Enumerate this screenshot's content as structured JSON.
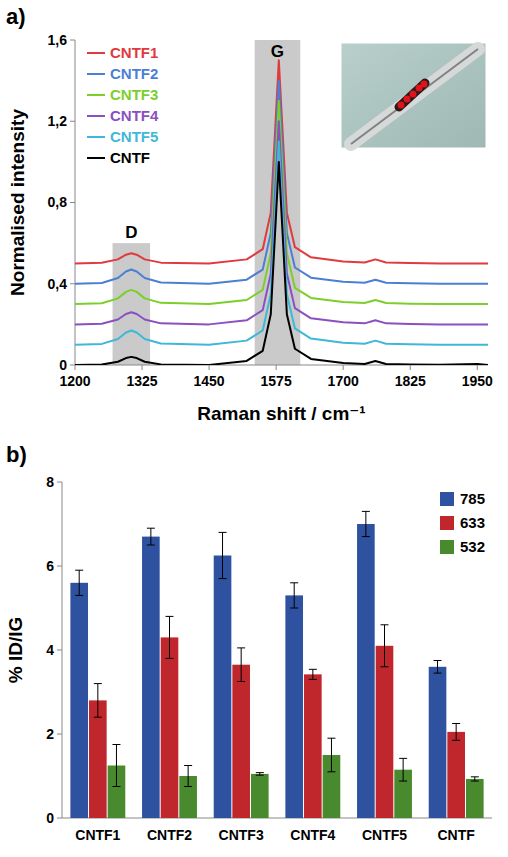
{
  "chart_data": [
    {
      "type": "line",
      "panel": "a)",
      "x_label": "Raman shift / cm⁻¹",
      "y_label": "Normalised intensity",
      "x": [
        1200,
        1250,
        1280,
        1295,
        1305,
        1315,
        1330,
        1360,
        1450,
        1520,
        1550,
        1565,
        1575,
        1580,
        1585,
        1595,
        1610,
        1640,
        1700,
        1740,
        1760,
        1780,
        1825,
        1880,
        1950,
        1970
      ],
      "series": [
        {
          "name": "CNTF1",
          "color": "#e0393e",
          "values": [
            0.5,
            0.503,
            0.52,
            0.543,
            0.55,
            0.543,
            0.52,
            0.504,
            0.5,
            0.52,
            0.57,
            0.75,
            1.25,
            1.5,
            1.25,
            0.75,
            0.58,
            0.53,
            0.51,
            0.505,
            0.52,
            0.505,
            0.502,
            0.5,
            0.5,
            0.5
          ]
        },
        {
          "name": "CNTF2",
          "color": "#4a7fd4",
          "values": [
            0.4,
            0.404,
            0.428,
            0.46,
            0.47,
            0.46,
            0.428,
            0.406,
            0.4,
            0.42,
            0.47,
            0.65,
            1.15,
            1.4,
            1.15,
            0.65,
            0.48,
            0.43,
            0.41,
            0.405,
            0.42,
            0.405,
            0.402,
            0.4,
            0.4,
            0.4
          ]
        },
        {
          "name": "CNTF3",
          "color": "#7ccf2a",
          "values": [
            0.3,
            0.304,
            0.328,
            0.36,
            0.37,
            0.36,
            0.328,
            0.306,
            0.3,
            0.32,
            0.37,
            0.55,
            1.05,
            1.3,
            1.05,
            0.55,
            0.38,
            0.33,
            0.31,
            0.305,
            0.32,
            0.305,
            0.302,
            0.3,
            0.3,
            0.3
          ]
        },
        {
          "name": "CNTF4",
          "color": "#8a4fc0",
          "values": [
            0.2,
            0.203,
            0.224,
            0.251,
            0.26,
            0.251,
            0.224,
            0.205,
            0.2,
            0.22,
            0.27,
            0.45,
            0.95,
            1.2,
            0.95,
            0.45,
            0.28,
            0.23,
            0.21,
            0.205,
            0.22,
            0.205,
            0.202,
            0.2,
            0.2,
            0.2
          ]
        },
        {
          "name": "CNTF5",
          "color": "#3fb8d8",
          "values": [
            0.1,
            0.104,
            0.128,
            0.16,
            0.17,
            0.16,
            0.128,
            0.106,
            0.1,
            0.12,
            0.17,
            0.35,
            0.85,
            1.1,
            0.85,
            0.35,
            0.18,
            0.13,
            0.11,
            0.105,
            0.12,
            0.105,
            0.102,
            0.1,
            0.1,
            0.1
          ]
        },
        {
          "name": "CNTF",
          "color": "#000000",
          "values": [
            0,
            0.002,
            0.016,
            0.034,
            0.04,
            0.034,
            0.016,
            0.003,
            0,
            0.02,
            0.07,
            0.25,
            0.75,
            1,
            0.75,
            0.25,
            0.08,
            0.03,
            0.01,
            0.005,
            0.02,
            0.005,
            0.003,
            0.001,
            0.005,
            0
          ]
        }
      ],
      "shaded_regions": [
        {
          "label": "D",
          "x": [
            1270,
            1340
          ],
          "y": [
            0,
            0.6
          ]
        },
        {
          "label": "G",
          "x": [
            1535,
            1620
          ],
          "y": [
            0,
            1.6
          ]
        }
      ],
      "xlim": [
        1200,
        1970
      ],
      "xticks": [
        1200,
        1325,
        1450,
        1575,
        1700,
        1825,
        1950
      ],
      "ylim": [
        0,
        1.6
      ],
      "yticks": [
        0,
        {
          "value": 0.4,
          "label": "0,4"
        },
        {
          "value": 0.8,
          "label": "0,8"
        },
        {
          "value": 1.2,
          "label": "1,2"
        },
        {
          "value": 1.6,
          "label": "1,6"
        }
      ],
      "legend": "upper left",
      "grid": false
    },
    {
      "type": "bar",
      "panel": "b)",
      "y_label": "% ID/IG",
      "categories": [
        "CNTF1",
        "CNTF2",
        "CNTF3",
        "CNTF4",
        "CNTF5",
        "CNTF"
      ],
      "series": [
        {
          "name": "785",
          "color": "#2f52a0",
          "values": [
            5.6,
            6.7,
            6.25,
            5.3,
            7.0,
            3.6
          ],
          "errors": [
            0.3,
            0.2,
            0.55,
            0.3,
            0.3,
            0.15
          ]
        },
        {
          "name": "633",
          "color": "#c0272d",
          "values": [
            2.8,
            4.3,
            3.65,
            3.42,
            4.1,
            2.05
          ],
          "errors": [
            0.4,
            0.5,
            0.4,
            0.12,
            0.5,
            0.2
          ]
        },
        {
          "name": "532",
          "color": "#4a8a2e",
          "values": [
            1.25,
            1.0,
            1.05,
            1.5,
            1.15,
            0.93
          ],
          "errors": [
            0.5,
            0.25,
            0.03,
            0.4,
            0.27,
            0.05
          ]
        }
      ],
      "ylim": [
        0,
        8
      ],
      "yticks": [
        0,
        2,
        4,
        6,
        8
      ],
      "legend": "upper right",
      "grid": false
    }
  ]
}
